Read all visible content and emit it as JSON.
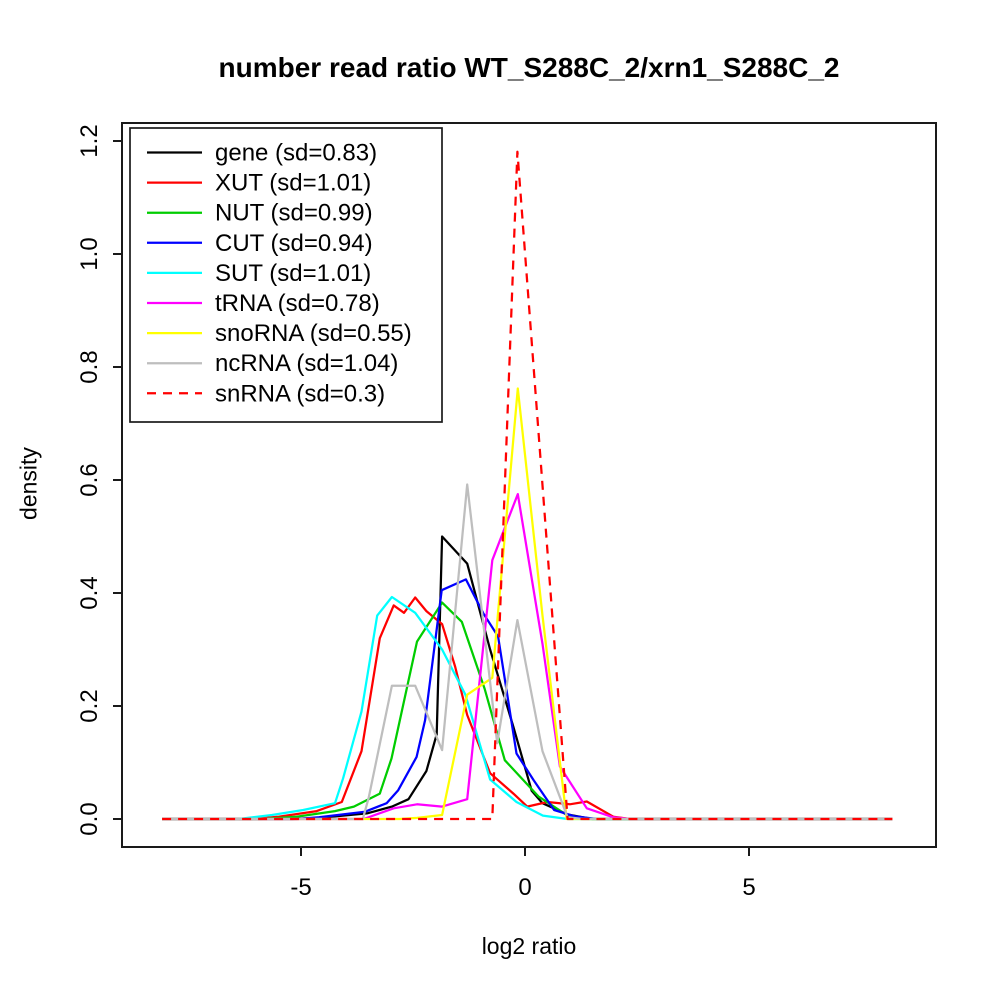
{
  "chart_data": {
    "type": "line",
    "title": "number read ratio WT_S288C_2/xrn1_S288C_2",
    "xlabel": "log2 ratio",
    "ylabel": "density",
    "xlim": [
      -9.0,
      9.2
    ],
    "ylim": [
      0,
      1.232
    ],
    "x_ticks": [
      "-5",
      "0",
      "5"
    ],
    "x_tick_values": [
      -5,
      0,
      5
    ],
    "y_ticks": [
      "0.0",
      "0.2",
      "0.4",
      "0.6",
      "0.8",
      "1.0",
      "1.2"
    ],
    "y_tick_values": [
      0,
      0.2,
      0.4,
      0.6,
      0.8,
      1.0,
      1.2
    ],
    "grid": false,
    "legend_position": "top-left",
    "axis_color": "#1a1a1a",
    "series": [
      {
        "name": "gene",
        "sd": 0.83,
        "label": "gene (sd=0.83)",
        "color": "#000000",
        "dash": false,
        "points": [
          [
            -8.1,
            0
          ],
          [
            -5.2,
            0
          ],
          [
            -4.6,
            0.002
          ],
          [
            -3.53,
            0.01
          ],
          [
            -2.97,
            0.022
          ],
          [
            -2.6,
            0.035
          ],
          [
            -2.2,
            0.085
          ],
          [
            -1.97,
            0.15
          ],
          [
            -1.85,
            0.5
          ],
          [
            -1.29,
            0.452
          ],
          [
            -0.78,
            0.3
          ],
          [
            -0.26,
            0.163
          ],
          [
            0.15,
            0.05
          ],
          [
            0.39,
            0.028
          ],
          [
            0.95,
            0.008
          ],
          [
            1.5,
            0
          ],
          [
            8.2,
            0
          ]
        ]
      },
      {
        "name": "XUT",
        "sd": 1.01,
        "label": "XUT (sd=1.01)",
        "color": "#ff0000",
        "dash": false,
        "points": [
          [
            -8.1,
            0
          ],
          [
            -6.1,
            0
          ],
          [
            -5.5,
            0.004
          ],
          [
            -4.65,
            0.014
          ],
          [
            -4.09,
            0.03
          ],
          [
            -3.65,
            0.12
          ],
          [
            -3.24,
            0.32
          ],
          [
            -2.93,
            0.378
          ],
          [
            -2.7,
            0.365
          ],
          [
            -2.45,
            0.392
          ],
          [
            -2.2,
            0.368
          ],
          [
            -1.85,
            0.345
          ],
          [
            -1.56,
            0.27
          ],
          [
            -1.29,
            0.184
          ],
          [
            -0.78,
            0.081
          ],
          [
            -0.26,
            0.045
          ],
          [
            0.05,
            0.022
          ],
          [
            0.5,
            0.03
          ],
          [
            1.0,
            0.026
          ],
          [
            1.38,
            0.031
          ],
          [
            1.97,
            0.004
          ],
          [
            2.35,
            0
          ],
          [
            8.2,
            0
          ]
        ]
      },
      {
        "name": "NUT",
        "sd": 0.99,
        "label": "NUT (sd=0.99)",
        "color": "#00cd00",
        "dash": false,
        "points": [
          [
            -8.1,
            0
          ],
          [
            -5.9,
            0
          ],
          [
            -5.1,
            0.004
          ],
          [
            -4.24,
            0.014
          ],
          [
            -3.82,
            0.022
          ],
          [
            -3.24,
            0.045
          ],
          [
            -2.98,
            0.107
          ],
          [
            -2.41,
            0.314
          ],
          [
            -1.85,
            0.383
          ],
          [
            -1.41,
            0.349
          ],
          [
            -0.9,
            0.23
          ],
          [
            -0.45,
            0.104
          ],
          [
            0.3,
            0.04
          ],
          [
            0.95,
            0.006
          ],
          [
            1.45,
            0
          ],
          [
            8.2,
            0
          ]
        ]
      },
      {
        "name": "CUT",
        "sd": 0.94,
        "label": "CUT (sd=0.94)",
        "color": "#0000ff",
        "dash": false,
        "points": [
          [
            -8.1,
            0
          ],
          [
            -5.1,
            0
          ],
          [
            -4.6,
            0.003
          ],
          [
            -3.57,
            0.013
          ],
          [
            -3.09,
            0.028
          ],
          [
            -2.83,
            0.051
          ],
          [
            -2.42,
            0.11
          ],
          [
            -2.23,
            0.175
          ],
          [
            -1.86,
            0.405
          ],
          [
            -1.32,
            0.424
          ],
          [
            -0.93,
            0.364
          ],
          [
            -0.6,
            0.323
          ],
          [
            -0.19,
            0.116
          ],
          [
            0.19,
            0.069
          ],
          [
            0.65,
            0.016
          ],
          [
            1.1,
            0.005
          ],
          [
            1.6,
            0
          ],
          [
            8.2,
            0
          ]
        ]
      },
      {
        "name": "SUT",
        "sd": 1.01,
        "label": "SUT (sd=1.01)",
        "color": "#00ffff",
        "dash": false,
        "points": [
          [
            -8.1,
            0
          ],
          [
            -6.4,
            0
          ],
          [
            -5.65,
            0.007
          ],
          [
            -4.95,
            0.016
          ],
          [
            -4.24,
            0.028
          ],
          [
            -4.06,
            0.072
          ],
          [
            -3.65,
            0.19
          ],
          [
            -3.3,
            0.36
          ],
          [
            -2.97,
            0.393
          ],
          [
            -2.45,
            0.365
          ],
          [
            -1.85,
            0.3
          ],
          [
            -1.33,
            0.22
          ],
          [
            -0.78,
            0.07
          ],
          [
            -0.19,
            0.03
          ],
          [
            0.4,
            0.006
          ],
          [
            0.95,
            0
          ],
          [
            8.2,
            0
          ]
        ]
      },
      {
        "name": "tRNA",
        "sd": 0.78,
        "label": "tRNA (sd=0.78)",
        "color": "#ff00ff",
        "dash": false,
        "points": [
          [
            -8.1,
            0
          ],
          [
            -3.6,
            0
          ],
          [
            -2.93,
            0.019
          ],
          [
            -2.41,
            0.026
          ],
          [
            -1.85,
            0.022
          ],
          [
            -1.29,
            0.035
          ],
          [
            -0.73,
            0.458
          ],
          [
            -0.16,
            0.575
          ],
          [
            0.39,
            0.31
          ],
          [
            0.78,
            0.093
          ],
          [
            1.38,
            0.019
          ],
          [
            1.97,
            0.003
          ],
          [
            2.35,
            0
          ],
          [
            8.2,
            0
          ]
        ]
      },
      {
        "name": "snoRNA",
        "sd": 0.55,
        "label": "snoRNA (sd=0.55)",
        "color": "#ffff00",
        "dash": false,
        "points": [
          [
            -8.1,
            0
          ],
          [
            -2.8,
            0
          ],
          [
            -2.41,
            0.002
          ],
          [
            -1.85,
            0.007
          ],
          [
            -1.29,
            0.22
          ],
          [
            -0.73,
            0.25
          ],
          [
            -0.16,
            0.762
          ],
          [
            0.39,
            0.36
          ],
          [
            0.93,
            0
          ],
          [
            8.2,
            0
          ]
        ]
      },
      {
        "name": "ncRNA",
        "sd": 1.04,
        "label": "ncRNA (sd=1.04)",
        "color": "#bebebe",
        "dash": false,
        "points": [
          [
            -8.1,
            0
          ],
          [
            -3.62,
            0
          ],
          [
            -3.49,
            0.037
          ],
          [
            -2.97,
            0.236
          ],
          [
            -2.45,
            0.236
          ],
          [
            -1.85,
            0.122
          ],
          [
            -1.29,
            0.592
          ],
          [
            -0.62,
            0.134
          ],
          [
            -0.17,
            0.352
          ],
          [
            0.39,
            0.12
          ],
          [
            0.95,
            0.003
          ],
          [
            1.3,
            0
          ],
          [
            8.2,
            0
          ]
        ]
      },
      {
        "name": "snRNA",
        "sd": 0.3,
        "label": "snRNA (sd=0.3)",
        "color": "#ff0000",
        "dash": true,
        "points": [
          [
            -8.1,
            0
          ],
          [
            -0.73,
            0
          ],
          [
            -0.17,
            1.181
          ],
          [
            0.95,
            0
          ],
          [
            8.2,
            0
          ]
        ]
      }
    ]
  }
}
